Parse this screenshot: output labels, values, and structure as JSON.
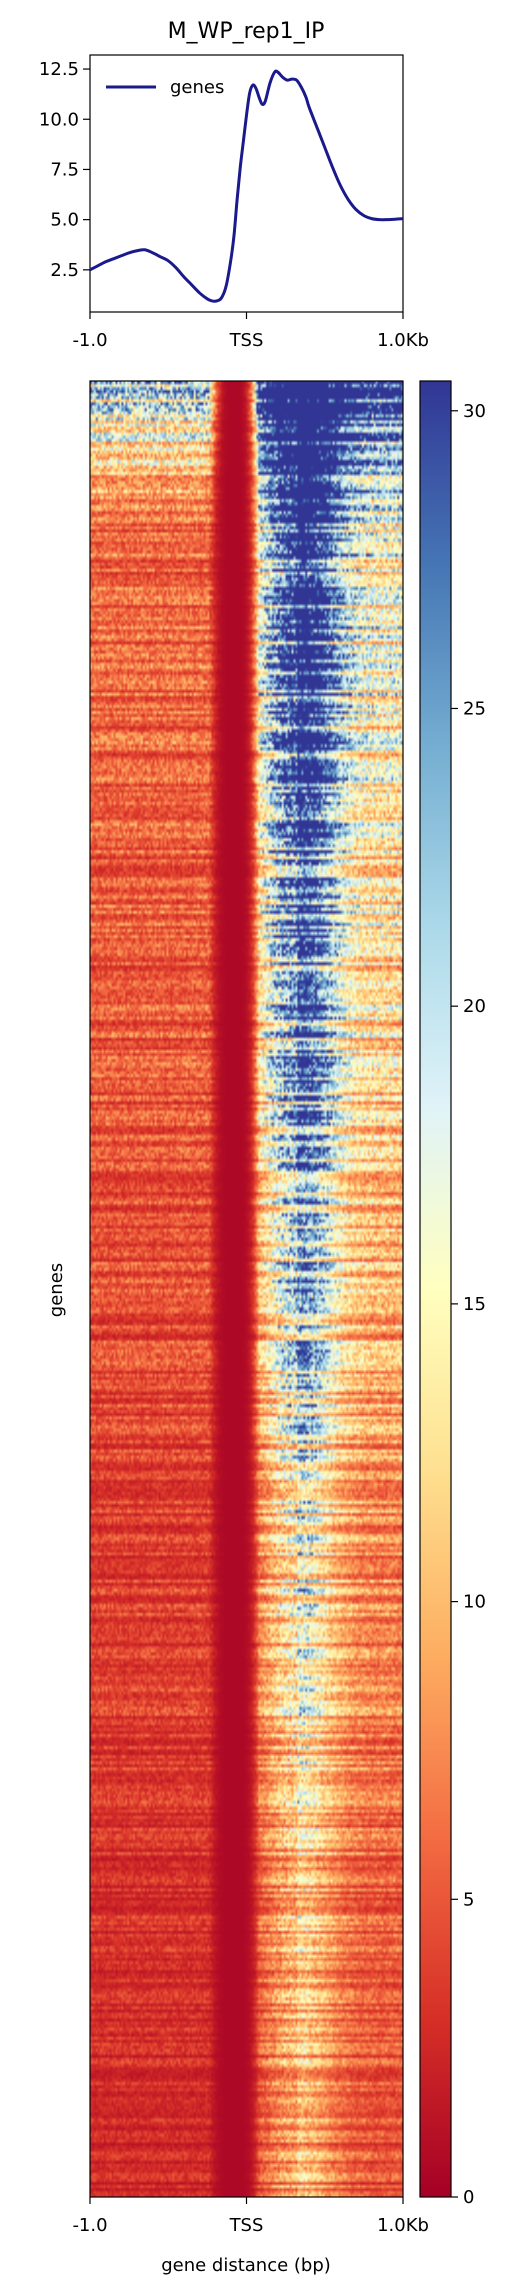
{
  "chart_data": [
    {
      "type": "line",
      "title": "M_WP_rep1_IP",
      "xlabel": "",
      "ylabel": "",
      "x_ticks": [
        "-1.0",
        "TSS",
        "1.0Kb"
      ],
      "x_tick_positions_bp": [
        -1000,
        0,
        1000
      ],
      "xlim": [
        -1000,
        1000
      ],
      "y_ticks": [
        "2.5",
        "5.0",
        "7.5",
        "10.0",
        "12.5"
      ],
      "ylim": [
        0.4,
        13.2
      ],
      "grid": false,
      "legend_position": "top-left",
      "series": [
        {
          "name": "genes",
          "color": "#1a1a8c",
          "x": [
            -1000,
            -950,
            -900,
            -850,
            -800,
            -750,
            -700,
            -650,
            -600,
            -550,
            -500,
            -450,
            -400,
            -350,
            -300,
            -250,
            -220,
            -190,
            -160,
            -130,
            -100,
            -80,
            -60,
            -40,
            -20,
            0,
            20,
            40,
            60,
            80,
            100,
            120,
            150,
            180,
            200,
            230,
            260,
            290,
            320,
            350,
            380,
            400,
            450,
            500,
            550,
            600,
            650,
            700,
            750,
            800,
            850,
            900,
            950,
            1000
          ],
          "y": [
            2.5,
            2.7,
            2.9,
            3.05,
            3.2,
            3.35,
            3.45,
            3.5,
            3.35,
            3.15,
            2.95,
            2.6,
            2.15,
            1.75,
            1.35,
            1.05,
            0.95,
            0.95,
            1.1,
            1.7,
            3.0,
            4.2,
            6.0,
            7.6,
            8.9,
            10.2,
            11.3,
            11.7,
            11.55,
            11.1,
            10.75,
            10.9,
            11.8,
            12.35,
            12.35,
            12.1,
            11.95,
            12.0,
            11.95,
            11.6,
            11.1,
            10.6,
            9.6,
            8.6,
            7.6,
            6.7,
            6.0,
            5.5,
            5.2,
            5.05,
            5.0,
            5.0,
            5.02,
            5.05
          ]
        }
      ]
    },
    {
      "type": "heatmap",
      "title": "",
      "xlabel": "gene distance (bp)",
      "ylabel": "genes",
      "x_ticks": [
        "-1.0",
        "TSS",
        "1.0Kb"
      ],
      "x_tick_positions_bp": [
        -1000,
        0,
        1000
      ],
      "xlim": [
        -1000,
        1000
      ],
      "rows_shown": "approx. 1000 genes sorted by signal (descending)",
      "profile_model": {
        "upstream_level_top": 6.5,
        "upstream_level_bottom": 2.5,
        "tss_trough_center_bp": -80,
        "tss_trough_halfwidth_bp": 160,
        "tss_trough_level": 0.5,
        "downstream_peak_center_bp": 320,
        "downstream_peak_top": 28,
        "downstream_peak_bottom": 5.5,
        "downstream_peak_width_bp": 280,
        "top_band_upstream_level": 20
      },
      "colormap": "RdYlBu",
      "colormap_stops": [
        "#a50026",
        "#d73027",
        "#f46d43",
        "#fdae61",
        "#fee090",
        "#ffffbf",
        "#e0f3f8",
        "#abd9e9",
        "#74add1",
        "#4575b4",
        "#313695"
      ],
      "colorbar": {
        "min": 0,
        "max": 30.5,
        "ticks": [
          "0",
          "5",
          "10",
          "15",
          "20",
          "25",
          "30"
        ],
        "tick_values": [
          0,
          5,
          10,
          15,
          20,
          25,
          30
        ]
      }
    }
  ]
}
